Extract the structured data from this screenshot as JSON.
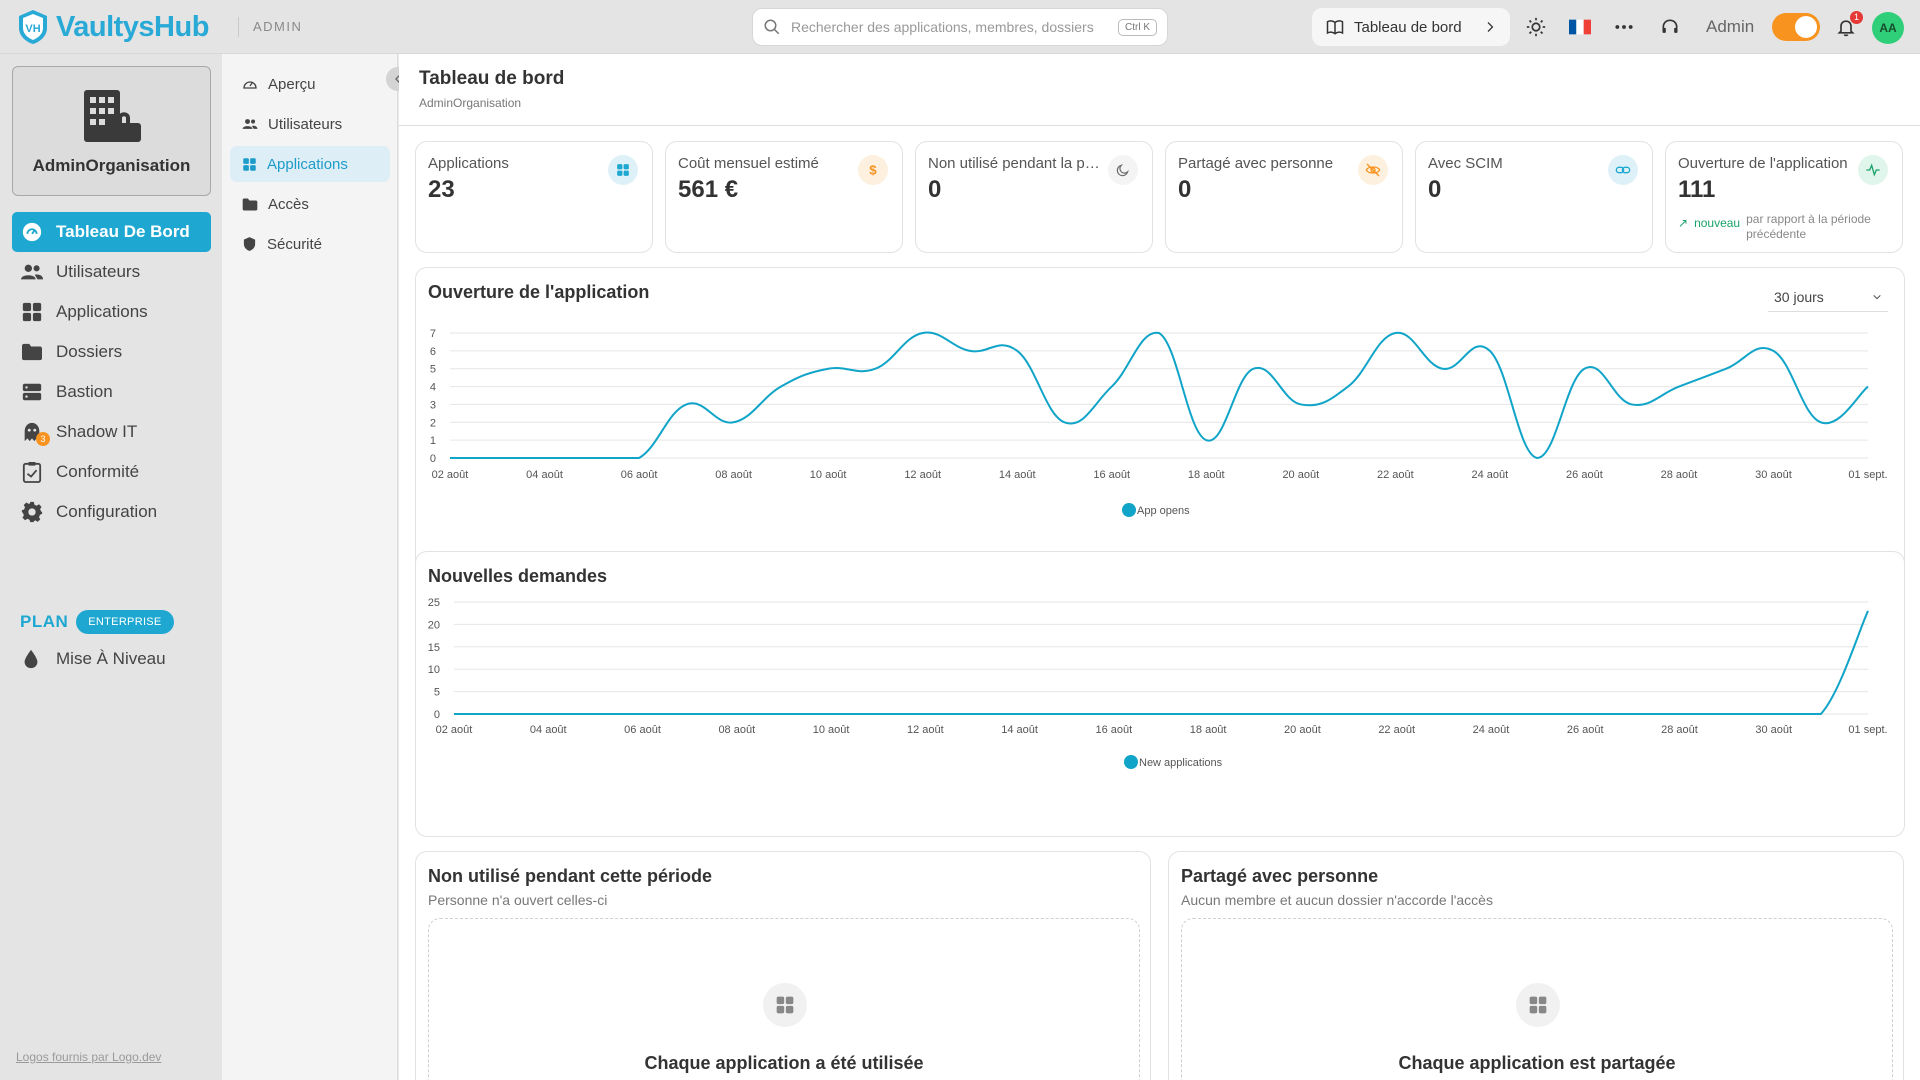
{
  "app": {
    "name": "VaultysHub",
    "section": "ADMIN"
  },
  "search": {
    "placeholder": "Rechercher des applications, membres, dossiers",
    "shortcut": "Ctrl K"
  },
  "header": {
    "breadcrumb": "Tableau de bord",
    "user_role": "Admin",
    "notifications": "1",
    "avatar_initials": "AA",
    "language_flag": "🇫🇷"
  },
  "sidebar": {
    "org_name": "AdminOrganisation",
    "items": [
      {
        "label": "Tableau De Bord",
        "icon": "dashboard-icon"
      },
      {
        "label": "Utilisateurs",
        "icon": "users-icon"
      },
      {
        "label": "Applications",
        "icon": "apps-grid-icon"
      },
      {
        "label": "Dossiers",
        "icon": "folder-icon"
      },
      {
        "label": "Bastion",
        "icon": "server-icon"
      },
      {
        "label": "Shadow IT",
        "icon": "ghost-icon",
        "badge": "3"
      },
      {
        "label": "Conformité",
        "icon": "clipboard-check-icon"
      },
      {
        "label": "Configuration",
        "icon": "gear-icon"
      }
    ],
    "plan_label": "PLAN",
    "plan_badge": "ENTERPRISE",
    "upgrade": "Mise À Niveau",
    "footer": "Logos fournis par Logo.dev"
  },
  "subnav": {
    "items": [
      {
        "label": "Aperçu"
      },
      {
        "label": "Utilisateurs"
      },
      {
        "label": "Applications"
      },
      {
        "label": "Accès"
      },
      {
        "label": "Sécurité"
      }
    ]
  },
  "page": {
    "title": "Tableau de bord",
    "subtitle": "AdminOrganisation"
  },
  "stats": [
    {
      "label": "Applications",
      "value": "23",
      "icon": "apps-grid-icon",
      "color": "#1ea8d1"
    },
    {
      "label": "Coût mensuel estimé",
      "value": "561 €",
      "icon": "dollar-icon",
      "color": "#f7931e"
    },
    {
      "label": "Non utilisé pendant la période",
      "value": "0",
      "icon": "moon-icon",
      "color": "#666666"
    },
    {
      "label": "Partagé avec personne",
      "value": "0",
      "icon": "eye-off-icon",
      "color": "#f7931e"
    },
    {
      "label": "Avec SCIM",
      "value": "0",
      "icon": "link-icon",
      "color": "#1ea8d1"
    },
    {
      "label": "Ouverture de l'application",
      "value": "111",
      "icon": "activity-icon",
      "color": "#1aa26a",
      "trend": "nouveau",
      "trend_note": "par rapport à la période précédente"
    }
  ],
  "charts": {
    "opens_title": "Ouverture de l'application",
    "range": "30 jours",
    "requests_title": "Nouvelles demandes"
  },
  "chart_data": [
    {
      "type": "line",
      "title": "Ouverture de l'application",
      "x": [
        "02 août",
        "03 août",
        "04 août",
        "05 août",
        "06 août",
        "07 août",
        "08 août",
        "09 août",
        "10 août",
        "11 août",
        "12 août",
        "13 août",
        "14 août",
        "15 août",
        "16 août",
        "17 août",
        "18 août",
        "19 août",
        "20 août",
        "21 août",
        "22 août",
        "23 août",
        "24 août",
        "25 août",
        "26 août",
        "27 août",
        "28 août",
        "29 août",
        "30 août",
        "31 août",
        "01 sept."
      ],
      "x_tick_labels": [
        "02 août",
        "04 août",
        "06 août",
        "08 août",
        "10 août",
        "12 août",
        "14 août",
        "16 août",
        "18 août",
        "20 août",
        "22 août",
        "24 août",
        "26 août",
        "28 août",
        "30 août",
        "01 sept."
      ],
      "series": [
        {
          "name": "App opens",
          "color": "#10a4c8",
          "values": [
            0,
            0,
            0,
            0,
            0,
            3,
            2,
            4,
            5,
            5,
            7,
            6,
            6,
            2,
            4,
            7,
            1,
            5,
            3,
            4,
            7,
            5,
            6,
            0,
            5,
            3,
            4,
            5,
            6,
            2,
            4
          ]
        }
      ],
      "ylim": [
        0,
        7
      ],
      "yticks": [
        0,
        1,
        2,
        3,
        4,
        5,
        6,
        7
      ],
      "grid": true,
      "legend": "bottom"
    },
    {
      "type": "line",
      "title": "Nouvelles demandes",
      "x": [
        "02 août",
        "03 août",
        "04 août",
        "05 août",
        "06 août",
        "07 août",
        "08 août",
        "09 août",
        "10 août",
        "11 août",
        "12 août",
        "13 août",
        "14 août",
        "15 août",
        "16 août",
        "17 août",
        "18 août",
        "19 août",
        "20 août",
        "21 août",
        "22 août",
        "23 août",
        "24 août",
        "25 août",
        "26 août",
        "27 août",
        "28 août",
        "29 août",
        "30 août",
        "31 août",
        "01 sept."
      ],
      "x_tick_labels": [
        "02 août",
        "04 août",
        "06 août",
        "08 août",
        "10 août",
        "12 août",
        "14 août",
        "16 août",
        "18 août",
        "20 août",
        "22 août",
        "24 août",
        "26 août",
        "28 août",
        "30 août",
        "01 sept."
      ],
      "series": [
        {
          "name": "New applications",
          "color": "#10a4c8",
          "values": [
            0,
            0,
            0,
            0,
            0,
            0,
            0,
            0,
            0,
            0,
            0,
            0,
            0,
            0,
            0,
            0,
            0,
            0,
            0,
            0,
            0,
            0,
            0,
            0,
            0,
            0,
            0,
            0,
            0,
            0,
            23
          ]
        }
      ],
      "ylim": [
        0,
        25
      ],
      "yticks": [
        0,
        5,
        10,
        15,
        20,
        25
      ],
      "grid": true,
      "legend": "bottom"
    }
  ],
  "panels": {
    "unused": {
      "title": "Non utilisé pendant cette période",
      "subtitle": "Personne n'a ouvert celles-ci",
      "empty": "Chaque application a été utilisée"
    },
    "unshared": {
      "title": "Partagé avec personne",
      "subtitle": "Aucun membre et aucun dossier n'accorde l'accès",
      "empty": "Chaque application est partagée"
    }
  }
}
